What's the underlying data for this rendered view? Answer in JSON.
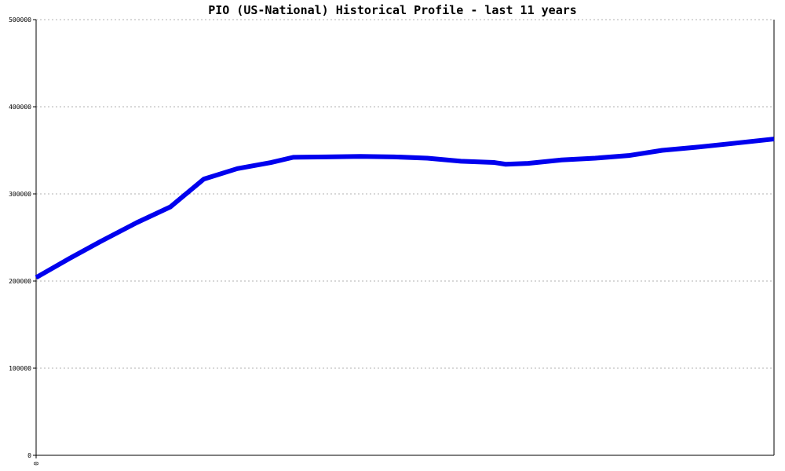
{
  "chart_data": {
    "type": "line",
    "title": "PIO (US-National) Historical Profile - last 11 years",
    "xlabel": "",
    "ylabel": "",
    "ylim": [
      0,
      500000
    ],
    "yticks": [
      {
        "value": 0,
        "label": "0"
      },
      {
        "value": 100000,
        "label": "100000"
      },
      {
        "value": 200000,
        "label": "200000"
      },
      {
        "value": 300000,
        "label": "300000"
      },
      {
        "value": 400000,
        "label": "400000"
      },
      {
        "value": 500000,
        "label": "500000"
      }
    ],
    "xticks": [
      {
        "value": 0,
        "label": "0"
      }
    ],
    "xlim": [
      0,
      132
    ],
    "grid": true,
    "colors": {
      "line": "#0000ee",
      "grid": "#b0b0b0",
      "axis": "#000000"
    },
    "series": [
      {
        "points": [
          {
            "x": 0,
            "y": 204000
          },
          {
            "x": 6,
            "y": 226000
          },
          {
            "x": 12,
            "y": 247000
          },
          {
            "x": 18,
            "y": 267000
          },
          {
            "x": 24,
            "y": 285000
          },
          {
            "x": 30,
            "y": 317000
          },
          {
            "x": 36,
            "y": 329000
          },
          {
            "x": 42,
            "y": 336000
          },
          {
            "x": 46,
            "y": 342000
          },
          {
            "x": 52,
            "y": 342500
          },
          {
            "x": 58,
            "y": 343000
          },
          {
            "x": 64,
            "y": 342500
          },
          {
            "x": 70,
            "y": 341000
          },
          {
            "x": 76,
            "y": 337500
          },
          {
            "x": 82,
            "y": 336000
          },
          {
            "x": 84,
            "y": 334000
          },
          {
            "x": 88,
            "y": 335000
          },
          {
            "x": 94,
            "y": 339000
          },
          {
            "x": 100,
            "y": 341000
          },
          {
            "x": 106,
            "y": 344000
          },
          {
            "x": 112,
            "y": 350000
          },
          {
            "x": 118,
            "y": 353500
          },
          {
            "x": 124,
            "y": 357500
          },
          {
            "x": 132,
            "y": 363000
          }
        ]
      }
    ]
  }
}
